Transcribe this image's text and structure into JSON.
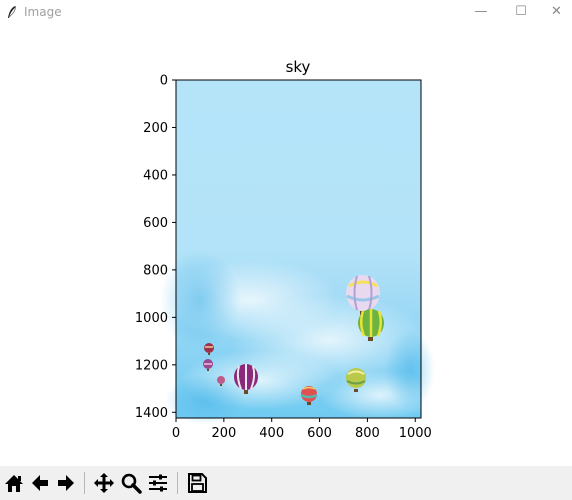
{
  "window": {
    "title": "Image",
    "icon": "feather-icon",
    "controls": [
      "minimize-icon",
      "maximize-icon",
      "close-icon"
    ],
    "minimize_glyph": "—",
    "maximize_glyph": "☐",
    "close_glyph": "✕"
  },
  "chart_data": {
    "type": "image",
    "title": "sky",
    "xlim": [
      0,
      1024
    ],
    "ylim": [
      1424,
      0
    ],
    "xticks": [
      0,
      200,
      400,
      600,
      800,
      1000
    ],
    "yticks": [
      0,
      200,
      400,
      600,
      800,
      1000,
      1200,
      1400
    ],
    "xlabel": "",
    "ylabel": "",
    "grid": false,
    "image_content": "sky-with-hot-air-balloons"
  },
  "toolbar": {
    "buttons": [
      {
        "name": "home-icon",
        "tooltip": "Reset original view"
      },
      {
        "name": "back-icon",
        "tooltip": "Back to previous view"
      },
      {
        "name": "forward-icon",
        "tooltip": "Forward to next view"
      },
      {
        "name": "pan-icon",
        "tooltip": "Pan axes"
      },
      {
        "name": "zoom-icon",
        "tooltip": "Zoom to rectangle"
      },
      {
        "name": "configure-subplots-icon",
        "tooltip": "Configure subplots"
      },
      {
        "name": "save-icon",
        "tooltip": "Save the figure"
      }
    ]
  },
  "colors": {
    "sky_top": "#b3e3f8",
    "sky_bottom": "#5ec2ef",
    "toolbar_bg": "#f0f0f0"
  }
}
